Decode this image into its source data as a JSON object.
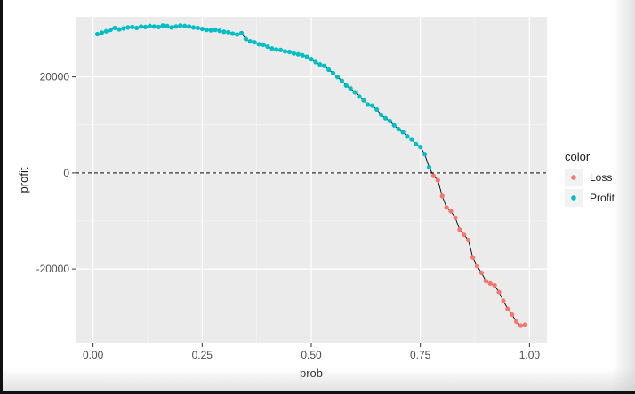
{
  "chart_data": {
    "type": "scatter",
    "title": "",
    "xlabel": "prob",
    "ylabel": "profit",
    "xlim": [
      -0.04,
      1.04
    ],
    "ylim": [
      -35500,
      32500
    ],
    "x_ticks": [
      0.0,
      0.25,
      0.5,
      0.75,
      1.0
    ],
    "x_tick_labels": [
      "0.00",
      "0.25",
      "0.50",
      "0.75",
      "1.00"
    ],
    "y_ticks": [
      -20000,
      0,
      20000
    ],
    "y_tick_labels": [
      "-20000",
      "0",
      "20000"
    ],
    "grid": true,
    "hline": {
      "y": 0,
      "style": "dashed"
    },
    "legend": {
      "title": "color",
      "placement": "right",
      "entries": [
        {
          "label": "Loss",
          "color": "#F8766D"
        },
        {
          "label": "Profit",
          "color": "#00BFC4"
        }
      ]
    },
    "colors": {
      "Loss": "#F8766D",
      "Profit": "#00BFC4",
      "panel": "#EBEBEB",
      "line": "#000000"
    },
    "series": [
      {
        "name": "Profit",
        "x": [
          0.01,
          0.02,
          0.03,
          0.04,
          0.05,
          0.06,
          0.07,
          0.08,
          0.09,
          0.1,
          0.11,
          0.12,
          0.13,
          0.14,
          0.15,
          0.16,
          0.17,
          0.18,
          0.19,
          0.2,
          0.21,
          0.22,
          0.23,
          0.24,
          0.25,
          0.26,
          0.27,
          0.28,
          0.29,
          0.3,
          0.31,
          0.32,
          0.33,
          0.34,
          0.35,
          0.36,
          0.37,
          0.38,
          0.39,
          0.4,
          0.41,
          0.42,
          0.43,
          0.44,
          0.45,
          0.46,
          0.47,
          0.48,
          0.49,
          0.5,
          0.51,
          0.52,
          0.53,
          0.54,
          0.55,
          0.56,
          0.57,
          0.58,
          0.59,
          0.6,
          0.61,
          0.62,
          0.63,
          0.64,
          0.65,
          0.66,
          0.67,
          0.68,
          0.69,
          0.7,
          0.71,
          0.72,
          0.73,
          0.74,
          0.75,
          0.76,
          0.77
        ],
        "y": [
          28900,
          29200,
          29500,
          29800,
          30200,
          29900,
          30100,
          30300,
          30400,
          30200,
          30500,
          30400,
          30600,
          30500,
          30400,
          30700,
          30600,
          30300,
          30500,
          30700,
          30600,
          30500,
          30300,
          30200,
          30000,
          29800,
          29700,
          29800,
          29600,
          29400,
          29300,
          29000,
          28800,
          29100,
          27900,
          27400,
          27200,
          26800,
          26700,
          26300,
          25900,
          25700,
          25600,
          25300,
          25200,
          24900,
          24700,
          24500,
          24200,
          23700,
          23100,
          22600,
          22300,
          21500,
          20800,
          20000,
          19200,
          18200,
          17600,
          16800,
          15900,
          15100,
          14200,
          14000,
          13200,
          12100,
          11400,
          10800,
          9900,
          9100,
          8500,
          7600,
          7000,
          6000,
          5400,
          3900,
          1200
        ]
      },
      {
        "name": "Loss",
        "x": [
          0.78,
          0.79,
          0.8,
          0.81,
          0.82,
          0.83,
          0.84,
          0.85,
          0.86,
          0.87,
          0.88,
          0.89,
          0.9,
          0.91,
          0.92,
          0.93,
          0.94,
          0.95,
          0.96,
          0.97,
          0.98,
          0.99
        ],
        "y": [
          -600,
          -1500,
          -4800,
          -7200,
          -8000,
          -9300,
          -11800,
          -12900,
          -14000,
          -17600,
          -19400,
          -20800,
          -22500,
          -23000,
          -23400,
          -24800,
          -26600,
          -28300,
          -29500,
          -31000,
          -31800,
          -31600
        ]
      }
    ]
  }
}
